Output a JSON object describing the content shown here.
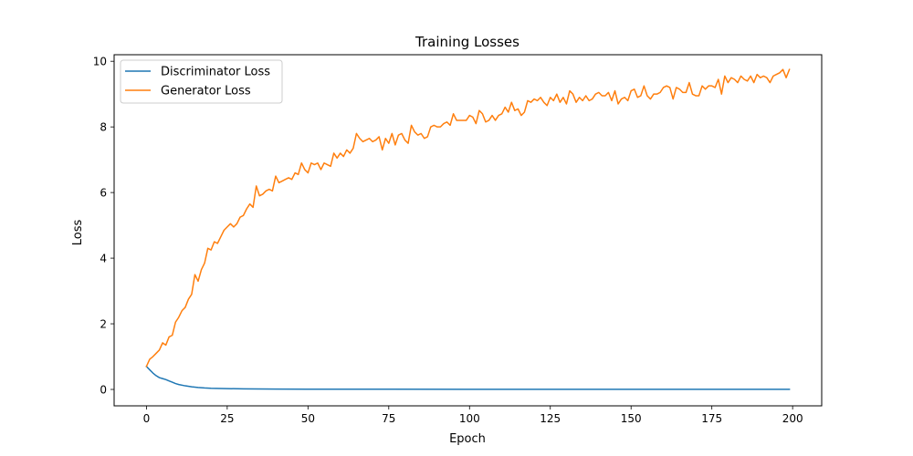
{
  "chart_data": {
    "type": "line",
    "title": "Training Losses",
    "xlabel": "Epoch",
    "ylabel": "Loss",
    "xlim": [
      -10,
      209
    ],
    "ylim": [
      -0.5,
      10.2
    ],
    "xticks": [
      0,
      25,
      50,
      75,
      100,
      125,
      150,
      175,
      200
    ],
    "yticks": [
      0,
      2,
      4,
      6,
      8,
      10
    ],
    "grid": false,
    "legend_position": "upper-left",
    "series": [
      {
        "name": "Discriminator Loss",
        "color": "#1f77b4",
        "x": [
          0,
          1,
          2,
          3,
          4,
          5,
          6,
          7,
          8,
          9,
          10,
          12,
          14,
          16,
          18,
          20,
          25,
          30,
          40,
          50,
          75,
          100,
          125,
          150,
          175,
          199
        ],
        "values": [
          0.7,
          0.6,
          0.5,
          0.42,
          0.36,
          0.33,
          0.3,
          0.26,
          0.22,
          0.18,
          0.15,
          0.11,
          0.08,
          0.06,
          0.045,
          0.035,
          0.025,
          0.018,
          0.012,
          0.009,
          0.006,
          0.005,
          0.004,
          0.003,
          0.003,
          0.003
        ]
      },
      {
        "name": "Generator Loss",
        "color": "#ff7f0e",
        "x": [
          0,
          1,
          2,
          3,
          4,
          5,
          6,
          7,
          8,
          9,
          10,
          11,
          12,
          13,
          14,
          15,
          16,
          17,
          18,
          19,
          20,
          21,
          22,
          23,
          24,
          25,
          26,
          27,
          28,
          29,
          30,
          31,
          32,
          33,
          34,
          35,
          36,
          37,
          38,
          39,
          40,
          41,
          42,
          43,
          44,
          45,
          46,
          47,
          48,
          49,
          50,
          51,
          52,
          53,
          54,
          55,
          56,
          57,
          58,
          59,
          60,
          61,
          62,
          63,
          64,
          65,
          66,
          67,
          68,
          69,
          70,
          71,
          72,
          73,
          74,
          75,
          76,
          77,
          78,
          79,
          80,
          81,
          82,
          83,
          84,
          85,
          86,
          87,
          88,
          89,
          90,
          91,
          92,
          93,
          94,
          95,
          96,
          97,
          98,
          99,
          100,
          101,
          102,
          103,
          104,
          105,
          106,
          107,
          108,
          109,
          110,
          111,
          112,
          113,
          114,
          115,
          116,
          117,
          118,
          119,
          120,
          121,
          122,
          123,
          124,
          125,
          126,
          127,
          128,
          129,
          130,
          131,
          132,
          133,
          134,
          135,
          136,
          137,
          138,
          139,
          140,
          141,
          142,
          143,
          144,
          145,
          146,
          147,
          148,
          149,
          150,
          151,
          152,
          153,
          154,
          155,
          156,
          157,
          158,
          159,
          160,
          161,
          162,
          163,
          164,
          165,
          166,
          167,
          168,
          169,
          170,
          171,
          172,
          173,
          174,
          175,
          176,
          177,
          178,
          179,
          180,
          181,
          182,
          183,
          184,
          185,
          186,
          187,
          188,
          189,
          190,
          191,
          192,
          193,
          194,
          195,
          196,
          197,
          198,
          199
        ],
        "values": [
          0.7,
          0.92,
          1.0,
          1.1,
          1.2,
          1.42,
          1.35,
          1.6,
          1.65,
          2.05,
          2.2,
          2.4,
          2.5,
          2.75,
          2.9,
          3.5,
          3.3,
          3.65,
          3.85,
          4.3,
          4.25,
          4.5,
          4.45,
          4.65,
          4.85,
          4.95,
          5.05,
          4.95,
          5.05,
          5.25,
          5.3,
          5.5,
          5.65,
          5.55,
          6.2,
          5.9,
          5.95,
          6.05,
          6.1,
          6.05,
          6.5,
          6.3,
          6.35,
          6.4,
          6.45,
          6.4,
          6.6,
          6.55,
          6.9,
          6.7,
          6.6,
          6.9,
          6.85,
          6.9,
          6.7,
          6.9,
          6.85,
          6.8,
          7.2,
          7.05,
          7.2,
          7.1,
          7.3,
          7.2,
          7.35,
          7.8,
          7.65,
          7.55,
          7.6,
          7.65,
          7.55,
          7.6,
          7.7,
          7.3,
          7.65,
          7.5,
          7.8,
          7.45,
          7.75,
          7.8,
          7.6,
          7.5,
          8.05,
          7.85,
          7.75,
          7.8,
          7.65,
          7.7,
          8.0,
          8.05,
          8.0,
          8.0,
          8.1,
          8.15,
          8.05,
          8.4,
          8.2,
          8.2,
          8.2,
          8.2,
          8.35,
          8.3,
          8.1,
          8.5,
          8.4,
          8.15,
          8.2,
          8.35,
          8.2,
          8.35,
          8.4,
          8.6,
          8.45,
          8.75,
          8.5,
          8.55,
          8.35,
          8.45,
          8.8,
          8.75,
          8.85,
          8.8,
          8.9,
          8.75,
          8.65,
          8.9,
          8.8,
          9.0,
          8.75,
          8.9,
          8.7,
          9.1,
          9.0,
          8.75,
          8.9,
          8.8,
          8.95,
          8.8,
          8.85,
          9.0,
          9.05,
          8.95,
          8.95,
          9.05,
          8.8,
          9.1,
          8.7,
          8.85,
          8.9,
          8.8,
          9.1,
          9.15,
          8.9,
          8.95,
          9.25,
          8.95,
          8.85,
          9.0,
          9.0,
          9.05,
          9.2,
          9.25,
          9.2,
          8.85,
          9.2,
          9.15,
          9.05,
          9.05,
          9.35,
          9.0,
          8.95,
          8.95,
          9.25,
          9.15,
          9.25,
          9.25,
          9.2,
          9.45,
          9.0,
          9.55,
          9.35,
          9.5,
          9.45,
          9.35,
          9.55,
          9.45,
          9.4,
          9.55,
          9.35,
          9.6,
          9.5,
          9.55,
          9.5,
          9.35,
          9.55,
          9.6,
          9.65,
          9.75,
          9.5,
          9.75
        ]
      }
    ]
  }
}
